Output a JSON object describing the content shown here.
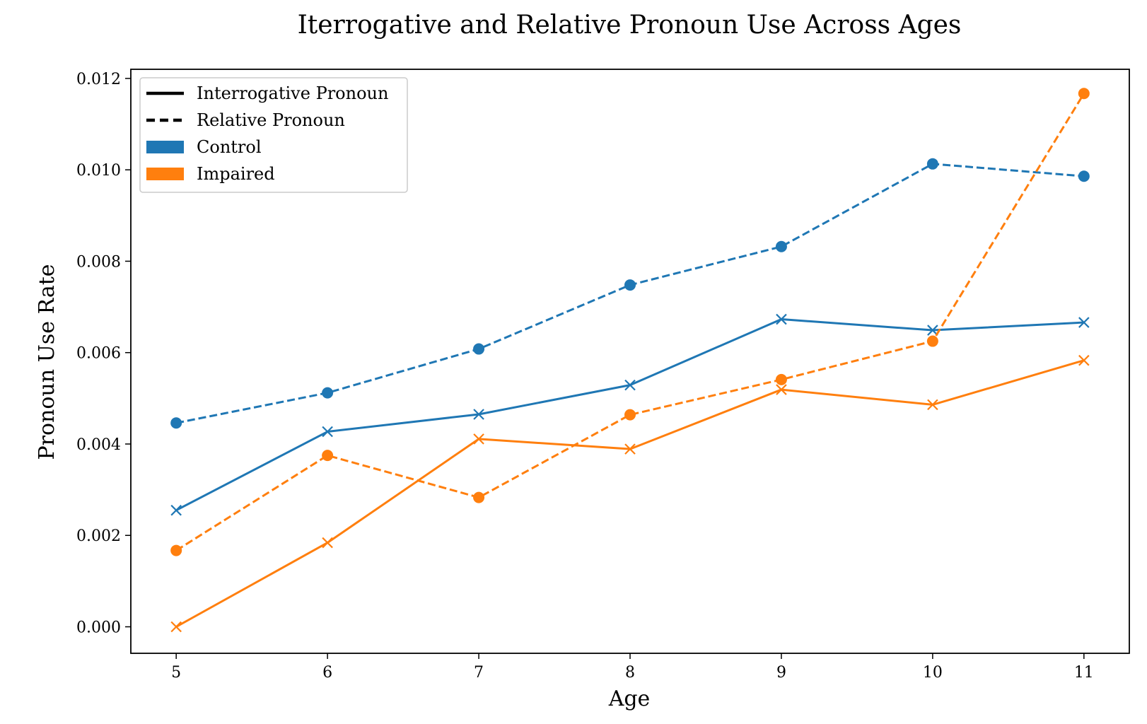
{
  "chart_data": {
    "type": "line",
    "title": "Iterrogative and Relative Pronoun Use Across Ages",
    "xlabel": "Age",
    "ylabel": "Pronoun Use Rate",
    "x": [
      5,
      6,
      7,
      8,
      9,
      10,
      11
    ],
    "x_tick_labels": [
      "5",
      "6",
      "7",
      "8",
      "9",
      "10",
      "11"
    ],
    "y_ticks": [
      0.0,
      0.002,
      0.004,
      0.006,
      0.008,
      0.01,
      0.012
    ],
    "y_tick_labels": [
      "0.000",
      "0.002",
      "0.004",
      "0.006",
      "0.008",
      "0.010",
      "0.012"
    ],
    "xlim": [
      4.7,
      11.3
    ],
    "ylim": [
      -0.00058,
      0.0122
    ],
    "grid": false,
    "legend_position": "top-left",
    "legend": {
      "items": [
        {
          "label": "Interrogative Pronoun",
          "kind": "line",
          "style": "solid",
          "color": "#000000"
        },
        {
          "label": "Relative Pronoun",
          "kind": "line",
          "style": "dashed",
          "color": "#000000"
        },
        {
          "label": "Control",
          "kind": "patch",
          "color": "#1f77b4"
        },
        {
          "label": "Impaired",
          "kind": "patch",
          "color": "#ff7f0e"
        }
      ]
    },
    "series": [
      {
        "group": "Control",
        "pronoun": "Interrogative",
        "color": "#1f77b4",
        "style": "solid",
        "marker": "x",
        "values": [
          0.00255,
          0.00427,
          0.00465,
          0.00529,
          0.00673,
          0.00649,
          0.00666
        ]
      },
      {
        "group": "Control",
        "pronoun": "Relative",
        "color": "#1f77b4",
        "style": "dashed",
        "marker": "o",
        "values": [
          0.00446,
          0.00512,
          0.00608,
          0.00748,
          0.00832,
          0.01013,
          0.00986
        ]
      },
      {
        "group": "Impaired",
        "pronoun": "Interrogative",
        "color": "#ff7f0e",
        "style": "solid",
        "marker": "x",
        "values": [
          0.0,
          0.00184,
          0.00411,
          0.00389,
          0.00519,
          0.00486,
          0.00583
        ]
      },
      {
        "group": "Impaired",
        "pronoun": "Relative",
        "color": "#ff7f0e",
        "style": "dashed",
        "marker": "o",
        "values": [
          0.00167,
          0.00375,
          0.00283,
          0.00464,
          0.00541,
          0.00625,
          0.01167
        ]
      }
    ]
  }
}
